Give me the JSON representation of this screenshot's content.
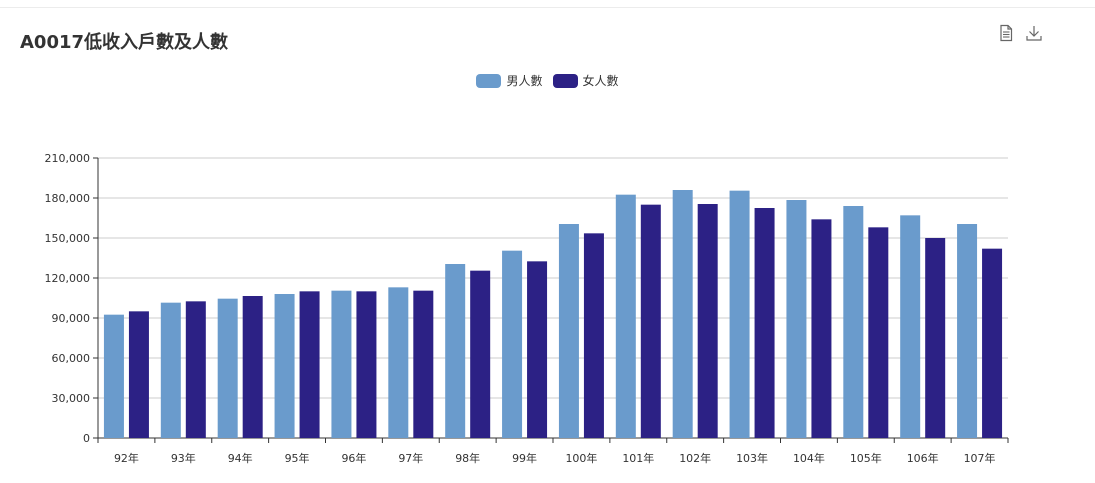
{
  "title": "A0017低收入戶數及人數",
  "toolbox": {
    "data_view_icon": "document-icon",
    "download_icon": "download-icon"
  },
  "colors": {
    "male": "#6a9bcc",
    "female": "#2c2185",
    "grid": "#cccccc",
    "axis": "#333333"
  },
  "chart_data": {
    "type": "bar",
    "categories": [
      "92年",
      "93年",
      "94年",
      "95年",
      "96年",
      "97年",
      "98年",
      "99年",
      "100年",
      "101年",
      "102年",
      "103年",
      "104年",
      "105年",
      "106年",
      "107年"
    ],
    "series": [
      {
        "name": "男人數",
        "values": [
          92500,
          101500,
          104500,
          108000,
          110500,
          113000,
          130500,
          140500,
          160500,
          182500,
          186000,
          185500,
          178500,
          174000,
          167000,
          160500
        ]
      },
      {
        "name": "女人數",
        "values": [
          95000,
          102500,
          106500,
          110000,
          110000,
          110500,
          125500,
          132500,
          153500,
          175000,
          175500,
          172500,
          164000,
          158000,
          150000,
          142000
        ]
      }
    ],
    "ylim": [
      0,
      210000
    ],
    "yticks": [
      "0",
      "30,000",
      "60,000",
      "90,000",
      "120,000",
      "150,000",
      "180,000",
      "210,000"
    ],
    "ytick_values": [
      0,
      30000,
      60000,
      90000,
      120000,
      150000,
      180000,
      210000
    ],
    "legend_position": "top-center",
    "grid": true
  }
}
